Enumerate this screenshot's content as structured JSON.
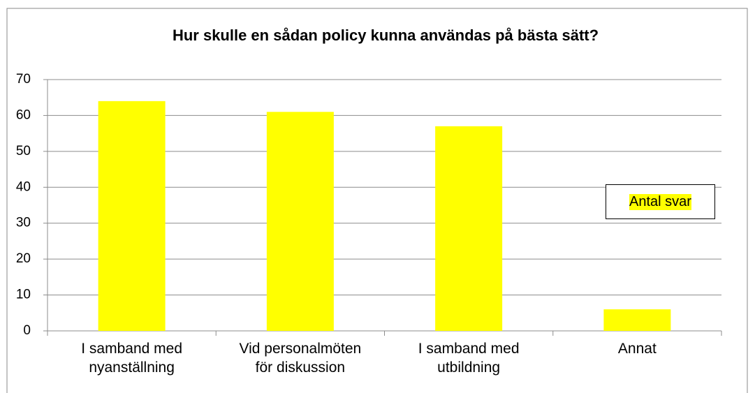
{
  "chart_data": {
    "type": "bar",
    "title": "Hur skulle en sådan policy kunna användas på bästa sätt?",
    "categories": [
      "I samband med\nnyanställning",
      "Vid personalmöten\nför diskussion",
      "I samband med\nutbildning",
      "Annat"
    ],
    "series": [
      {
        "name": "Antal svar",
        "color": "#ffff00",
        "values": [
          64,
          61,
          57,
          6
        ]
      }
    ],
    "ylim": [
      0,
      70
    ],
    "yticks": [
      0,
      10,
      20,
      30,
      40,
      50,
      60,
      70
    ],
    "grid": true,
    "legend": "right"
  }
}
